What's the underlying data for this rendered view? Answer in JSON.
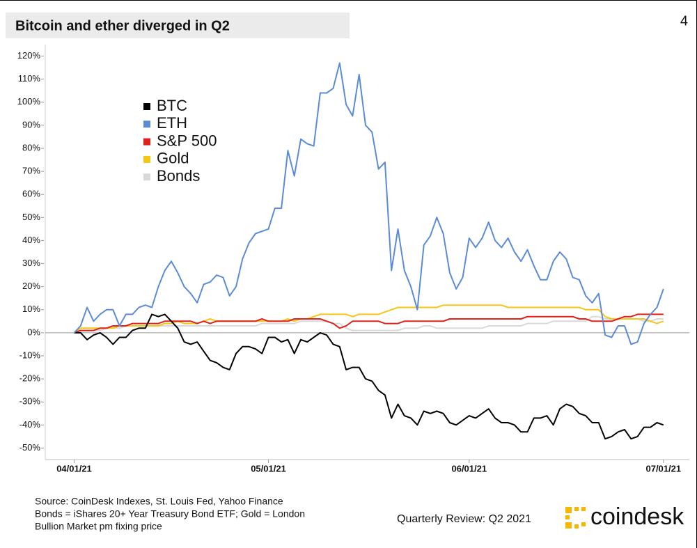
{
  "page": {
    "number": "4",
    "review": "Quarterly Review: Q2 2021",
    "brand": "coindesk",
    "notes": [
      "Source: CoinDesk Indexes, St. Louis Fed, Yahoo Finance",
      "Bonds = iShares 20+ Year Treasury Bond ETF; Gold = London",
      "Bullion Market pm fixing price"
    ]
  },
  "chart_data": {
    "type": "line",
    "title": "Bitcoin and ether diverged in Q2",
    "x": [
      "04/01/21",
      "04/02/21",
      "04/03/21",
      "04/04/21",
      "04/05/21",
      "04/06/21",
      "04/07/21",
      "04/08/21",
      "04/09/21",
      "04/10/21",
      "04/11/21",
      "04/12/21",
      "04/13/21",
      "04/14/21",
      "04/15/21",
      "04/16/21",
      "04/17/21",
      "04/18/21",
      "04/19/21",
      "04/20/21",
      "04/21/21",
      "04/22/21",
      "04/23/21",
      "04/24/21",
      "04/25/21",
      "04/26/21",
      "04/27/21",
      "04/28/21",
      "04/29/21",
      "04/30/21",
      "05/01/21",
      "05/02/21",
      "05/03/21",
      "05/04/21",
      "05/05/21",
      "05/06/21",
      "05/07/21",
      "05/08/21",
      "05/09/21",
      "05/10/21",
      "05/11/21",
      "05/12/21",
      "05/13/21",
      "05/14/21",
      "05/15/21",
      "05/16/21",
      "05/17/21",
      "05/18/21",
      "05/19/21",
      "05/20/21",
      "05/21/21",
      "05/22/21",
      "05/23/21",
      "05/24/21",
      "05/25/21",
      "05/26/21",
      "05/27/21",
      "05/28/21",
      "05/29/21",
      "05/30/21",
      "05/31/21",
      "06/01/21",
      "06/02/21",
      "06/03/21",
      "06/04/21",
      "06/05/21",
      "06/06/21",
      "06/07/21",
      "06/08/21",
      "06/09/21",
      "06/10/21",
      "06/11/21",
      "06/12/21",
      "06/13/21",
      "06/14/21",
      "06/15/21",
      "06/16/21",
      "06/17/21",
      "06/18/21",
      "06/19/21",
      "06/20/21",
      "06/21/21",
      "06/22/21",
      "06/23/21",
      "06/24/21",
      "06/25/21",
      "06/26/21",
      "06/27/21",
      "06/28/21",
      "06/29/21",
      "06/30/21",
      "07/01/21"
    ],
    "series": [
      {
        "name": "BTC",
        "color": "#000000",
        "values": [
          0,
          0,
          -3,
          -1,
          0,
          -2,
          -5,
          -2,
          -2,
          1,
          2,
          2,
          8,
          7,
          8,
          5,
          2,
          -4,
          -5,
          -4,
          -8,
          -12,
          -13,
          -15,
          -16,
          -9,
          -6,
          -6,
          -7,
          -9,
          -2,
          -2,
          -4,
          -3,
          -9,
          -3,
          -4,
          -2,
          0,
          -1,
          -5,
          -6,
          -16,
          -15,
          -15,
          -20,
          -21,
          -25,
          -27,
          -37,
          -31,
          -36,
          -37,
          -40,
          -34,
          -35,
          -34,
          -35,
          -39,
          -40,
          -38,
          -36,
          -37,
          -35,
          -33,
          -37,
          -39,
          -39,
          -40,
          -43,
          -43,
          -37,
          -37,
          -36,
          -40,
          -33,
          -31,
          -32,
          -35,
          -36,
          -39,
          -39,
          -46,
          -45,
          -43,
          -42,
          -46,
          -45,
          -41,
          -41,
          -39,
          -40
        ]
      },
      {
        "name": "ETH",
        "color": "#5b8bd6",
        "values": [
          0,
          3,
          11,
          5,
          8,
          10,
          10,
          3,
          8,
          8,
          11,
          12,
          11,
          20,
          27,
          31,
          26,
          20,
          17,
          13,
          21,
          22,
          25,
          24,
          16,
          20,
          32,
          39,
          43,
          44,
          45,
          54,
          54,
          79,
          68,
          84,
          82,
          81,
          104,
          104,
          106,
          117,
          99,
          94,
          112,
          90,
          87,
          71,
          74,
          27,
          45,
          27,
          20,
          10,
          38,
          42,
          50,
          43,
          26,
          19,
          24,
          41,
          37,
          41,
          48,
          40,
          37,
          41,
          35,
          31,
          36,
          29,
          23,
          23,
          31,
          35,
          32,
          24,
          23,
          16,
          13,
          17,
          -1,
          -2,
          3,
          3,
          -5,
          -4,
          4,
          8,
          11,
          19
        ]
      },
      {
        "name": "S&P 500",
        "color": "#e0201b",
        "values": [
          0,
          1,
          1,
          1,
          2,
          2,
          3,
          3,
          3,
          4,
          4,
          4,
          4,
          4,
          5,
          5,
          5,
          5,
          5,
          4,
          5,
          4,
          5,
          5,
          5,
          5,
          5,
          5,
          5,
          6,
          5,
          5,
          5,
          5,
          6,
          6,
          6,
          6,
          6,
          5,
          4,
          2,
          3,
          5,
          5,
          5,
          5,
          5,
          4,
          4,
          4,
          5,
          5,
          5,
          5,
          5,
          5,
          5,
          6,
          6,
          6,
          6,
          6,
          6,
          6,
          6,
          6,
          6,
          6,
          6,
          7,
          7,
          7,
          7,
          7,
          7,
          7,
          7,
          6,
          6,
          5,
          5,
          5,
          5,
          6,
          7,
          7,
          8,
          8,
          8,
          8,
          8
        ]
      },
      {
        "name": "Gold",
        "color": "#f5c518",
        "values": [
          0,
          2,
          2,
          2,
          2,
          2,
          2,
          3,
          3,
          3,
          3,
          3,
          3,
          3,
          4,
          4,
          5,
          4,
          4,
          4,
          5,
          6,
          5,
          5,
          5,
          5,
          5,
          5,
          5,
          5,
          5,
          5,
          5,
          6,
          5,
          6,
          6,
          7,
          8,
          8,
          8,
          8,
          8,
          7,
          8,
          8,
          8,
          8,
          9,
          10,
          11,
          11,
          11,
          11,
          11,
          11,
          11,
          12,
          12,
          12,
          12,
          12,
          12,
          12,
          12,
          12,
          12,
          11,
          11,
          11,
          11,
          11,
          11,
          11,
          11,
          11,
          11,
          11,
          11,
          10,
          10,
          10,
          7,
          6,
          6,
          6,
          6,
          6,
          6,
          5,
          4,
          5
        ]
      },
      {
        "name": "Bonds",
        "color": "#d9d9d9",
        "values": [
          0,
          1,
          1,
          1,
          1,
          2,
          2,
          2,
          3,
          3,
          3,
          3,
          3,
          3,
          3,
          3,
          3,
          3,
          3,
          3,
          3,
          3,
          3,
          3,
          3,
          3,
          3,
          3,
          3,
          4,
          4,
          4,
          4,
          4,
          4,
          5,
          5,
          5,
          5,
          5,
          4,
          4,
          2,
          1,
          1,
          1,
          1,
          1,
          1,
          1,
          1,
          2,
          2,
          2,
          3,
          3,
          2,
          2,
          2,
          2,
          2,
          2,
          2,
          2,
          3,
          3,
          3,
          3,
          3,
          3,
          4,
          4,
          4,
          4,
          5,
          5,
          5,
          5,
          5,
          5,
          7,
          7,
          6,
          6,
          6,
          6,
          6,
          6,
          5,
          5,
          6,
          6
        ]
      }
    ],
    "xlim": [
      "03/27/21",
      "07/05/21"
    ],
    "xticks": [
      "04/01/21",
      "05/01/21",
      "06/01/21",
      "07/01/21"
    ],
    "ylim": [
      -55,
      125
    ],
    "yticks": [
      {
        "value": 120,
        "label": "120%"
      },
      {
        "value": 110,
        "label": "110%"
      },
      {
        "value": 100,
        "label": "100%"
      },
      {
        "value": 90,
        "label": "90%"
      },
      {
        "value": 80,
        "label": "80%"
      },
      {
        "value": 70,
        "label": "70%"
      },
      {
        "value": 60,
        "label": "60%"
      },
      {
        "value": 50,
        "label": "50%"
      },
      {
        "value": 40,
        "label": "40%"
      },
      {
        "value": 30,
        "label": "30%"
      },
      {
        "value": 20,
        "label": "20%"
      },
      {
        "value": 10,
        "label": "10%"
      },
      {
        "value": 0,
        "label": "0%"
      },
      {
        "value": -10,
        "label": "-10%"
      },
      {
        "value": -20,
        "label": "-20%"
      },
      {
        "value": -30,
        "label": "-30%"
      },
      {
        "value": -40,
        "label": "-40%"
      },
      {
        "value": -50,
        "label": "-50%"
      }
    ],
    "legend": "upper left"
  }
}
